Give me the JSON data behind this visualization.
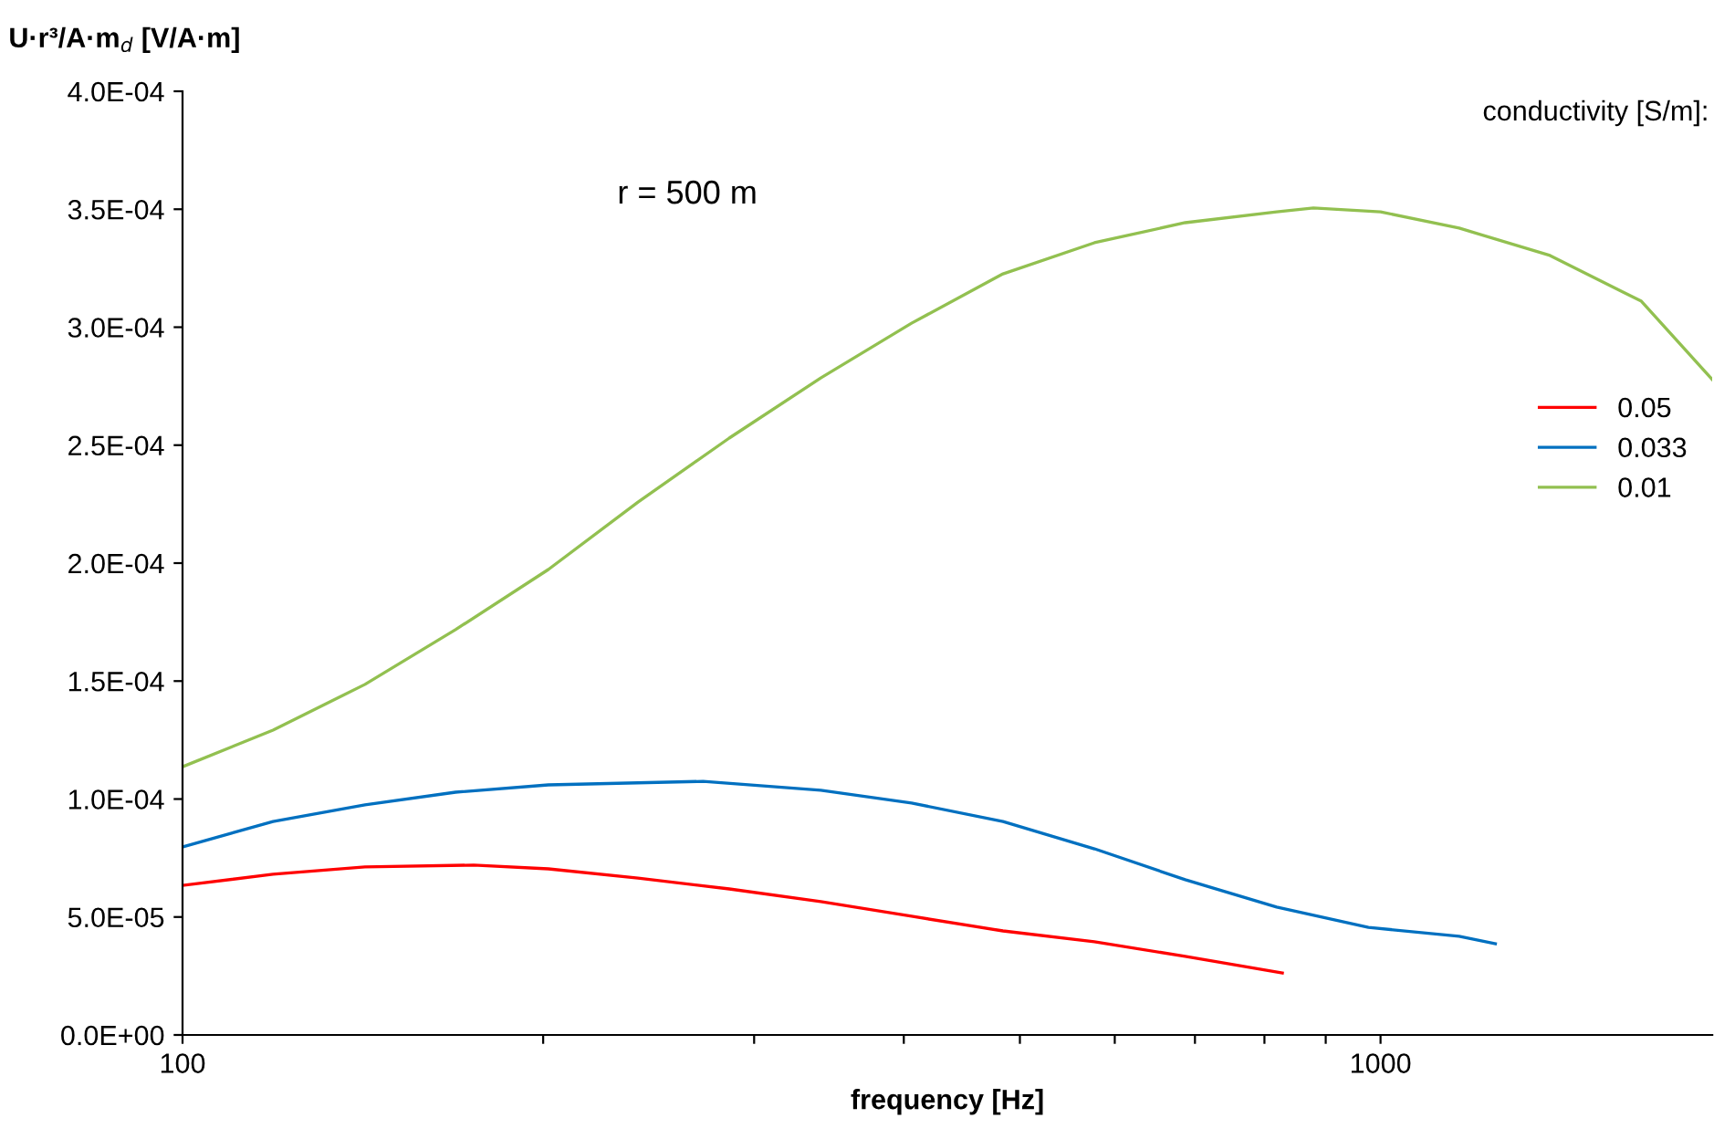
{
  "chart_data": {
    "type": "line",
    "xlabel": "frequency [Hz]",
    "ylabel": "U·r³/A·m$_{d}$ [V/A·m]",
    "legend_title": "conductivity [S/m]:",
    "annotations": [
      "r = 500 m"
    ],
    "log": "x",
    "legend": "right",
    "grid": false,
    "xlim": [
      100,
      1892
    ],
    "xticks": [
      100,
      {
        "value": 200,
        "label": null
      },
      {
        "value": 300,
        "label": null
      },
      {
        "value": 400,
        "label": null
      },
      {
        "value": 500,
        "label": null
      },
      {
        "value": 600,
        "label": null
      },
      {
        "value": 700,
        "label": null
      },
      {
        "value": 800,
        "label": null
      },
      {
        "value": 900,
        "label": null
      },
      1000
    ],
    "ylim": [
      0,
      0.0004
    ],
    "yticks": [
      {
        "value": 0,
        "label": "0.0E+00"
      },
      {
        "value": 5e-05,
        "label": "5.0E-05"
      },
      {
        "value": 0.0001,
        "label": "1.0E-04"
      },
      {
        "value": 0.00015,
        "label": "1.5E-04"
      },
      {
        "value": 0.0002,
        "label": "2.0E-04"
      },
      {
        "value": 0.00025,
        "label": "2.5E-04"
      },
      {
        "value": 0.0003,
        "label": "3.0E-04"
      },
      {
        "value": 0.00035,
        "label": "3.5E-04"
      },
      {
        "value": 0.0004,
        "label": "4.0E-04"
      }
    ],
    "series": [
      {
        "name": "0.05",
        "color": "#ff0000",
        "x": [
          100,
          119,
          142,
          175,
          202,
          240,
          286,
          341,
          406,
          484,
          577,
          687,
          828
        ],
        "values": [
          6.34e-05,
          6.81e-05,
          7.12e-05,
          7.2e-05,
          7.04e-05,
          6.65e-05,
          6.19e-05,
          5.65e-05,
          5.03e-05,
          4.41e-05,
          3.95e-05,
          3.33e-05,
          2.63e-05
        ]
      },
      {
        "name": "0.033",
        "color": "#0070c0",
        "x": [
          100,
          119,
          142,
          169,
          202,
          272,
          341,
          406,
          484,
          577,
          687,
          819,
          977,
          1163,
          1247
        ],
        "values": [
          7.97e-05,
          9.05e-05,
          9.75e-05,
          0.0001029,
          0.000106,
          0.0001075,
          0.0001037,
          9.83e-05,
          9.05e-05,
          7.89e-05,
          6.58e-05,
          5.42e-05,
          4.56e-05,
          4.18e-05,
          3.87e-05
        ]
      },
      {
        "name": "0.01",
        "color": "#92c050",
        "x": [
          100,
          119,
          142,
          169,
          202,
          240,
          286,
          341,
          406,
          484,
          577,
          687,
          819,
          879,
          1000,
          1163,
          1385,
          1651,
          1892
        ],
        "values": [
          0.0001137,
          0.0001292,
          0.0001486,
          0.0001718,
          0.0001973,
          0.0002259,
          0.000253,
          0.0002785,
          0.0003017,
          0.0003226,
          0.0003358,
          0.0003443,
          0.0003489,
          0.0003505,
          0.0003489,
          0.000342,
          0.0003304,
          0.000311,
          0.0002778
        ]
      }
    ]
  }
}
